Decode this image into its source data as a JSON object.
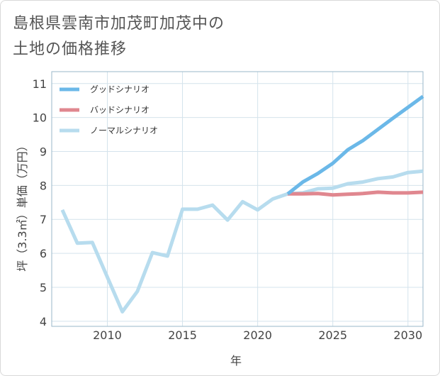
{
  "chart_data": {
    "type": "line",
    "title_lines": [
      "島根県雲南市加茂町加茂中の",
      "土地の価格推移"
    ],
    "xlabel": "年",
    "ylabel": "坪（3.3㎡）単価（万円）",
    "xlim": [
      2006.3,
      2031
    ],
    "ylim": [
      3.85,
      11.35
    ],
    "xticks": [
      2010,
      2015,
      2020,
      2025,
      2030
    ],
    "yticks": [
      4,
      5,
      6,
      7,
      8,
      9,
      10,
      11
    ],
    "xtick_labels": [
      "2010",
      "2015",
      "2020",
      "2025",
      "2030"
    ],
    "ytick_labels": [
      "4",
      "5",
      "6",
      "7",
      "8",
      "9",
      "10",
      "11"
    ],
    "grid": true,
    "legend_position": "top-left",
    "series": [
      {
        "name": "グッドシナリオ",
        "color": "#6bb8e8",
        "x": [
          2022,
          2023,
          2024,
          2025,
          2026,
          2027,
          2028,
          2029,
          2030,
          2031
        ],
        "y": [
          7.75,
          8.1,
          8.35,
          8.65,
          9.05,
          9.32,
          9.65,
          9.98,
          10.3,
          10.62
        ]
      },
      {
        "name": "バッドシナリオ",
        "color": "#e0878f",
        "x": [
          2022,
          2023,
          2024,
          2025,
          2026,
          2027,
          2028,
          2029,
          2030,
          2031
        ],
        "y": [
          7.75,
          7.75,
          7.76,
          7.72,
          7.74,
          7.76,
          7.8,
          7.78,
          7.78,
          7.8
        ]
      },
      {
        "name": "ノーマルシナリオ",
        "color": "#b7dcee",
        "x": [
          2007,
          2008,
          2009,
          2010,
          2011,
          2012,
          2013,
          2014,
          2015,
          2016,
          2017,
          2018,
          2019,
          2020,
          2021,
          2022,
          2023,
          2024,
          2025,
          2026,
          2027,
          2028,
          2029,
          2030,
          2031
        ],
        "y": [
          7.28,
          6.3,
          6.32,
          5.3,
          4.28,
          4.88,
          6.02,
          5.92,
          7.3,
          7.3,
          7.42,
          6.98,
          7.52,
          7.28,
          7.6,
          7.75,
          7.78,
          7.9,
          7.92,
          8.05,
          8.1,
          8.2,
          8.25,
          8.38,
          8.42
        ]
      }
    ]
  }
}
